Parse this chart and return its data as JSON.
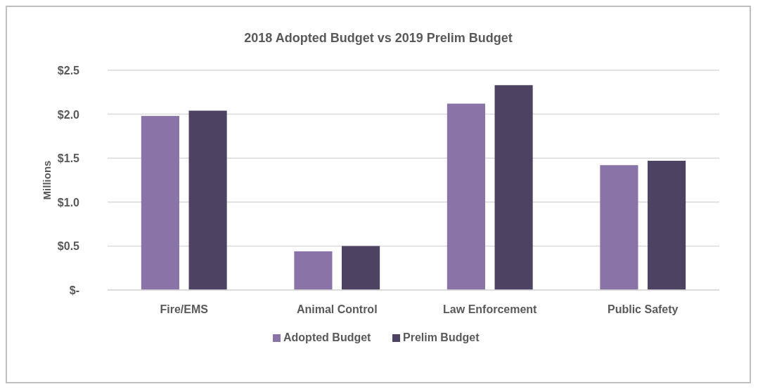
{
  "chart_data": {
    "type": "bar",
    "title": "2018 Adopted Budget vs 2019 Prelim Budget",
    "ylabel": "Millions",
    "categories": [
      "Fire/EMS",
      "Animal Control",
      "Law Enforcement",
      "Public Safety"
    ],
    "series": [
      {
        "name": "Adopted Budget",
        "color": "#8a73a6",
        "values": [
          1.98,
          0.44,
          2.12,
          1.42
        ]
      },
      {
        "name": "Prelim Budget",
        "color": "#4e4263",
        "values": [
          2.04,
          0.5,
          2.33,
          1.47
        ]
      }
    ],
    "ylim": [
      0,
      2.5
    ],
    "yticks": [
      {
        "value": 0,
        "label": "$-"
      },
      {
        "value": 0.5,
        "label": "$0.5"
      },
      {
        "value": 1,
        "label": "$1.0"
      },
      {
        "value": 1.5,
        "label": "$1.5"
      },
      {
        "value": 2,
        "label": "$2.0"
      },
      {
        "value": 2.5,
        "label": "$2.5"
      }
    ],
    "grid": "y",
    "legend": "bottom"
  }
}
